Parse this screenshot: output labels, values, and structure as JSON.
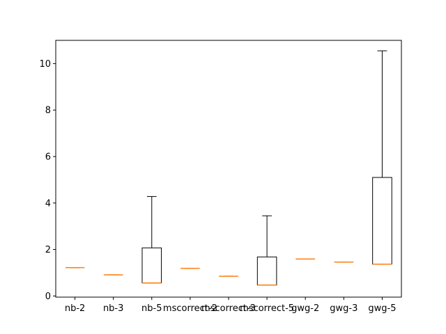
{
  "chart_data": {
    "type": "box",
    "categories": [
      "nb-2",
      "nb-3",
      "nb-5",
      "mscorrect-2",
      "mscorrect-3",
      "mscorrect-5",
      "gwg-2",
      "gwg-3",
      "gwg-5"
    ],
    "boxes": [
      {
        "label": "nb-2",
        "whislo": 1.22,
        "q1": 1.22,
        "med": 1.22,
        "q3": 1.22,
        "whishi": 1.22
      },
      {
        "label": "nb-3",
        "whislo": 0.91,
        "q1": 0.91,
        "med": 0.91,
        "q3": 0.91,
        "whishi": 0.91
      },
      {
        "label": "nb-5",
        "whislo": 0.56,
        "q1": 0.56,
        "med": 0.56,
        "q3": 2.07,
        "whishi": 4.28
      },
      {
        "label": "mscorrect-2",
        "whislo": 1.19,
        "q1": 1.19,
        "med": 1.19,
        "q3": 1.19,
        "whishi": 1.19
      },
      {
        "label": "mscorrect-3",
        "whislo": 0.85,
        "q1": 0.85,
        "med": 0.85,
        "q3": 0.85,
        "whishi": 0.85
      },
      {
        "label": "mscorrect-5",
        "whislo": 0.47,
        "q1": 0.47,
        "med": 0.47,
        "q3": 1.68,
        "whishi": 3.45
      },
      {
        "label": "gwg-2",
        "whislo": 1.59,
        "q1": 1.59,
        "med": 1.59,
        "q3": 1.59,
        "whishi": 1.59
      },
      {
        "label": "gwg-3",
        "whislo": 1.46,
        "q1": 1.46,
        "med": 1.46,
        "q3": 1.46,
        "whishi": 1.46
      },
      {
        "label": "gwg-5",
        "whislo": 1.37,
        "q1": 1.37,
        "med": 1.37,
        "q3": 5.1,
        "whishi": 10.55
      }
    ],
    "title": "",
    "xlabel": "",
    "ylabel": "",
    "ylim": [
      -0.05,
      11.0
    ],
    "yticks": [
      0,
      2,
      4,
      6,
      8,
      10
    ],
    "grid": false,
    "colors": {
      "box": "#000000",
      "median": "#ff7f0e",
      "axes": "#000000",
      "background": "#ffffff"
    }
  }
}
